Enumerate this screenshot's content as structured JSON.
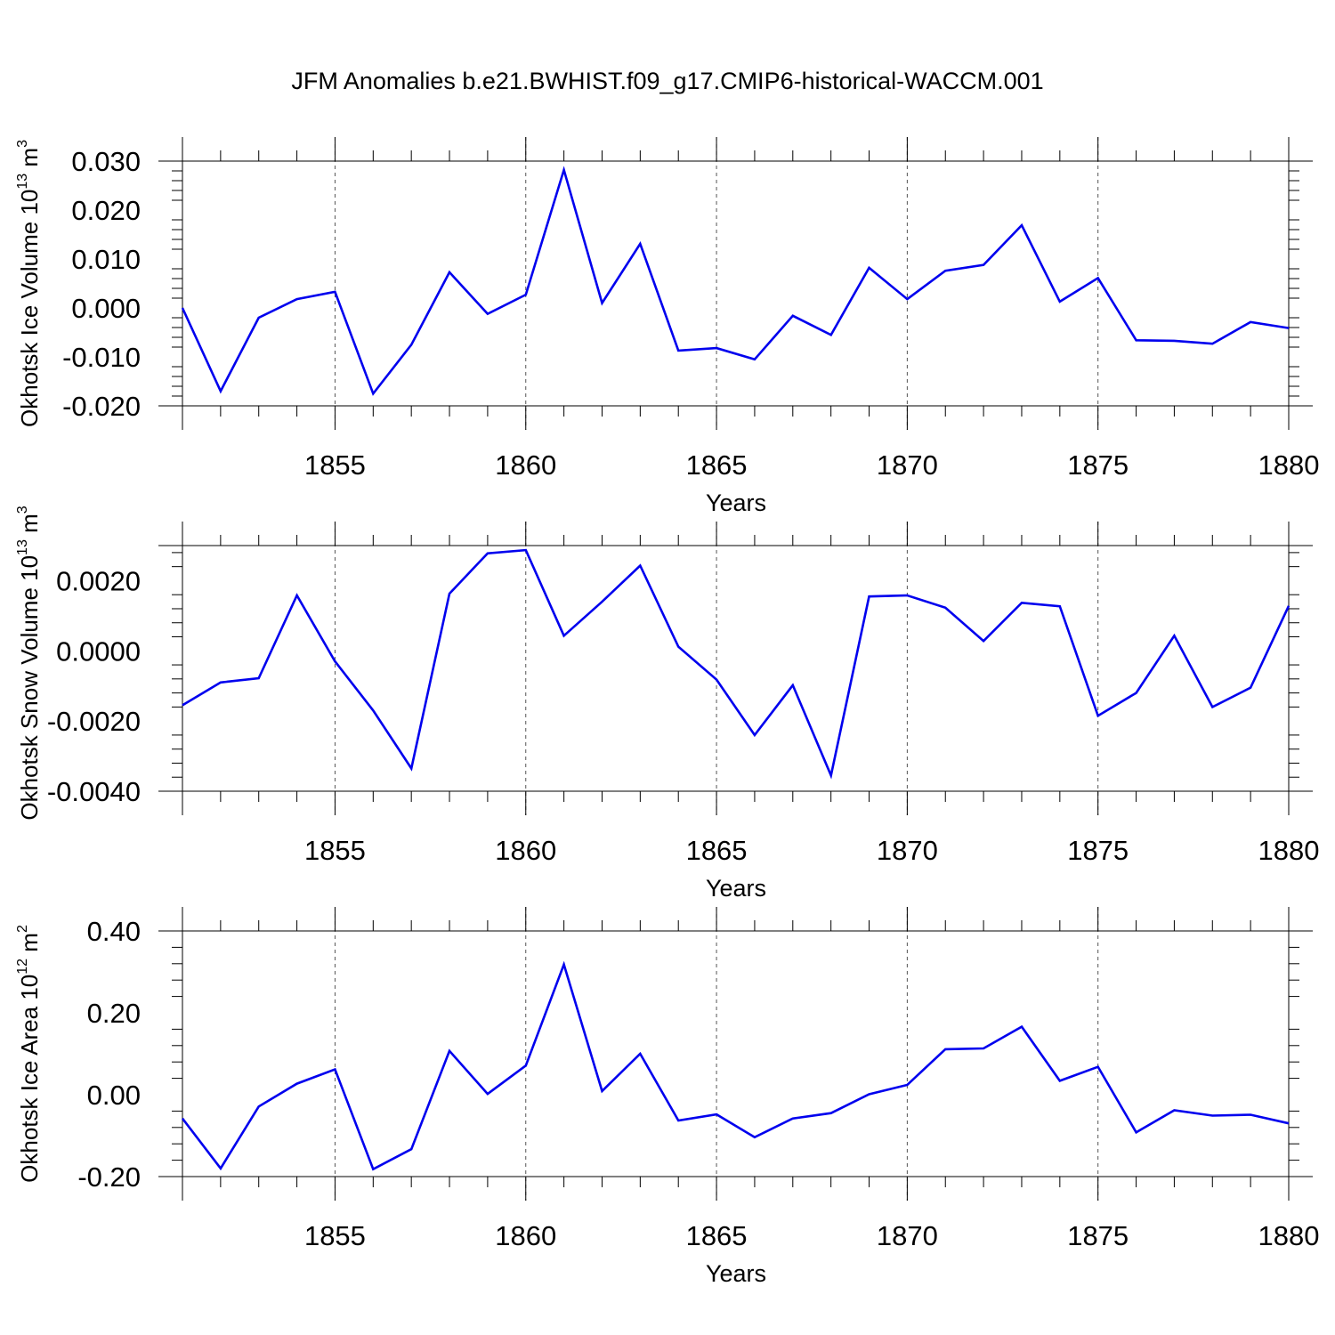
{
  "title": "JFM Anomalies b.e21.BWHIST.f09_g17.CMIP6-historical-WACCM.001",
  "chart_data": [
    {
      "type": "line",
      "xlabel": "Years",
      "ylabel": "Okhotsk Ice Volume 10",
      "ylabel_exp": "13",
      "ylabel_unit": " m",
      "ylabel_unit_exp": "3",
      "xlim": [
        1851,
        1880
      ],
      "ylim": [
        -0.02,
        0.03
      ],
      "xticks": [
        1855,
        1860,
        1865,
        1870,
        1875,
        1880
      ],
      "yticks": [
        -0.02,
        -0.01,
        0.0,
        0.01,
        0.02,
        0.03
      ],
      "ytick_labels": [
        "-0.020",
        "-0.010",
        "0.000",
        "0.010",
        "0.020",
        "0.030"
      ],
      "line_color": "#0000ee",
      "x": [
        1851,
        1852,
        1853,
        1854,
        1855,
        1856,
        1857,
        1858,
        1859,
        1860,
        1861,
        1862,
        1863,
        1864,
        1865,
        1866,
        1867,
        1868,
        1869,
        1870,
        1871,
        1872,
        1873,
        1874,
        1875,
        1876,
        1877,
        1878,
        1879,
        1880
      ],
      "values": [
        0.0,
        -0.017,
        -0.002,
        0.0018,
        0.0033,
        -0.0175,
        -0.0075,
        0.0073,
        -0.0012,
        0.0027,
        0.0282,
        0.001,
        0.0131,
        -0.0087,
        -0.0082,
        -0.0105,
        -0.0016,
        -0.0055,
        0.0082,
        0.0018,
        0.0076,
        0.0088,
        0.0169,
        0.0013,
        0.0061,
        -0.0066,
        -0.0067,
        -0.0073,
        -0.0029,
        -0.0041
      ]
    },
    {
      "type": "line",
      "xlabel": "Years",
      "ylabel": "Okhotsk Snow Volume 10",
      "ylabel_exp": "13",
      "ylabel_unit": " m",
      "ylabel_unit_exp": "3",
      "xlim": [
        1851,
        1880
      ],
      "ylim": [
        -0.004,
        0.003
      ],
      "xticks": [
        1855,
        1860,
        1865,
        1870,
        1875,
        1880
      ],
      "yticks": [
        -0.004,
        -0.002,
        0.0,
        0.002
      ],
      "ytick_labels": [
        "-0.0040",
        "-0.0020",
        "0.0000",
        "0.0020"
      ],
      "line_color": "#0000ee",
      "x": [
        1851,
        1852,
        1853,
        1854,
        1855,
        1856,
        1857,
        1858,
        1859,
        1860,
        1861,
        1862,
        1863,
        1864,
        1865,
        1866,
        1867,
        1868,
        1869,
        1870,
        1871,
        1872,
        1873,
        1874,
        1875,
        1876,
        1877,
        1878,
        1879,
        1880
      ],
      "values": [
        -0.00155,
        -0.0009,
        -0.00078,
        0.00158,
        -0.0003,
        -0.0017,
        -0.00335,
        0.00163,
        0.00278,
        0.00287,
        0.00043,
        0.0014,
        0.00243,
        0.00012,
        -0.00082,
        -0.0024,
        -0.00098,
        -0.00355,
        0.00155,
        0.00158,
        0.00123,
        0.00028,
        0.00137,
        0.00127,
        -0.00185,
        -0.0012,
        0.00043,
        -0.0016,
        -0.00105,
        0.00128
      ]
    },
    {
      "type": "line",
      "xlabel": "Years",
      "ylabel": "Okhotsk Ice Area 10",
      "ylabel_exp": "12",
      "ylabel_unit": " m",
      "ylabel_unit_exp": "2",
      "xlim": [
        1851,
        1880
      ],
      "ylim": [
        -0.2,
        0.4
      ],
      "xticks": [
        1855,
        1860,
        1865,
        1870,
        1875,
        1880
      ],
      "yticks": [
        -0.2,
        0.0,
        0.2,
        0.4
      ],
      "ytick_labels": [
        "-0.20",
        "0.00",
        "0.20",
        "0.40"
      ],
      "line_color": "#0000ee",
      "x": [
        1851,
        1852,
        1853,
        1854,
        1855,
        1856,
        1857,
        1858,
        1859,
        1860,
        1861,
        1862,
        1863,
        1864,
        1865,
        1866,
        1867,
        1868,
        1869,
        1870,
        1871,
        1872,
        1873,
        1874,
        1875,
        1876,
        1877,
        1878,
        1879,
        1880
      ],
      "values": [
        -0.058,
        -0.18,
        -0.029,
        0.027,
        0.062,
        -0.182,
        -0.133,
        0.107,
        0.002,
        0.071,
        0.318,
        0.009,
        0.1,
        -0.063,
        -0.048,
        -0.104,
        -0.058,
        -0.045,
        0.001,
        0.024,
        0.111,
        0.113,
        0.166,
        0.034,
        0.068,
        -0.092,
        -0.038,
        -0.051,
        -0.049,
        -0.07
      ]
    }
  ]
}
